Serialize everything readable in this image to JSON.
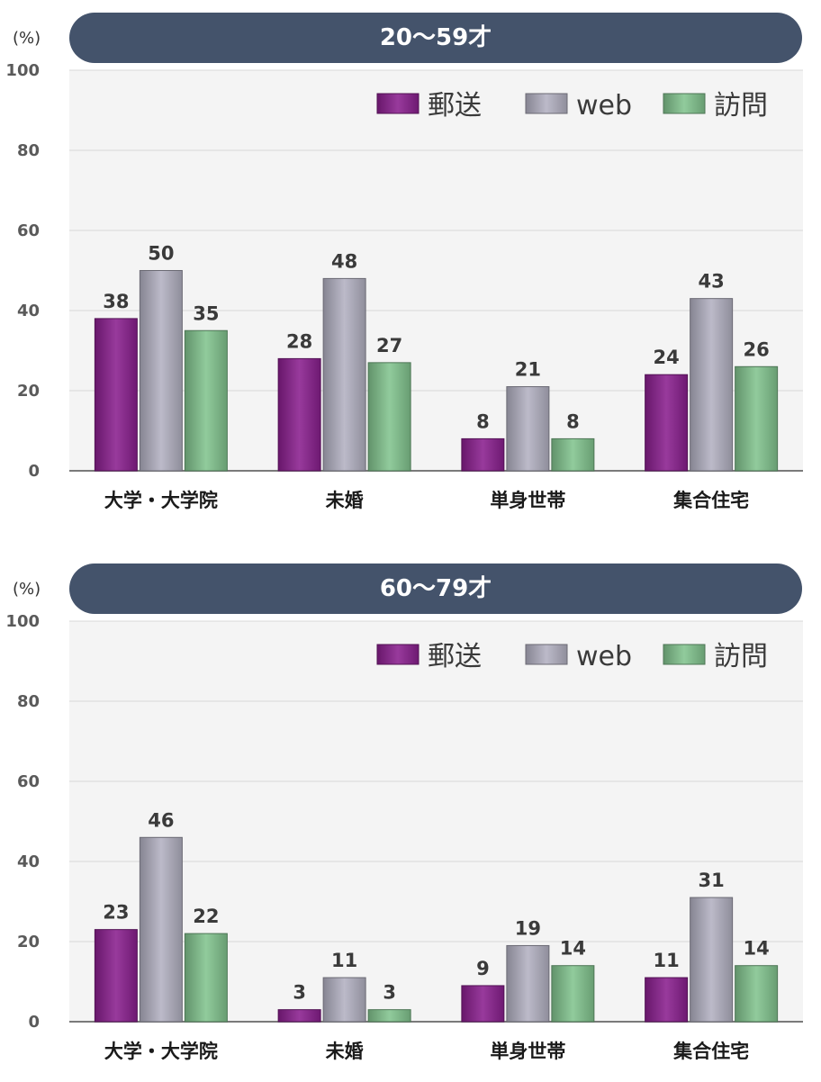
{
  "unit_label": "(%)",
  "chart_data": [
    {
      "type": "bar",
      "title": "20〜59才",
      "categories": [
        "大学・大学院",
        "未婚",
        "単身世帯",
        "集合住宅"
      ],
      "series": [
        {
          "name": "郵送",
          "color": "#8a1f8e",
          "values": [
            38,
            28,
            8,
            24
          ]
        },
        {
          "name": "web",
          "color": "#b3b1c2",
          "values": [
            50,
            48,
            21,
            43
          ]
        },
        {
          "name": "訪問",
          "color": "#82c48f",
          "values": [
            35,
            27,
            8,
            26
          ]
        }
      ],
      "yticks": [
        "0",
        "20",
        "40",
        "60",
        "80",
        "100"
      ],
      "ylim": [
        0,
        100
      ],
      "grid": true,
      "legend": "top-right"
    },
    {
      "type": "bar",
      "title": "60〜79才",
      "categories": [
        "大学・大学院",
        "未婚",
        "単身世帯",
        "集合住宅"
      ],
      "series": [
        {
          "name": "郵送",
          "color": "#8a1f8e",
          "values": [
            23,
            3,
            9,
            11
          ]
        },
        {
          "name": "web",
          "color": "#b3b1c2",
          "values": [
            46,
            11,
            19,
            31
          ]
        },
        {
          "name": "訪問",
          "color": "#82c48f",
          "values": [
            22,
            3,
            14,
            14
          ]
        }
      ],
      "yticks": [
        "0",
        "20",
        "40",
        "60",
        "80",
        "100"
      ],
      "ylim": [
        0,
        100
      ],
      "grid": true,
      "legend": "top-right"
    }
  ]
}
